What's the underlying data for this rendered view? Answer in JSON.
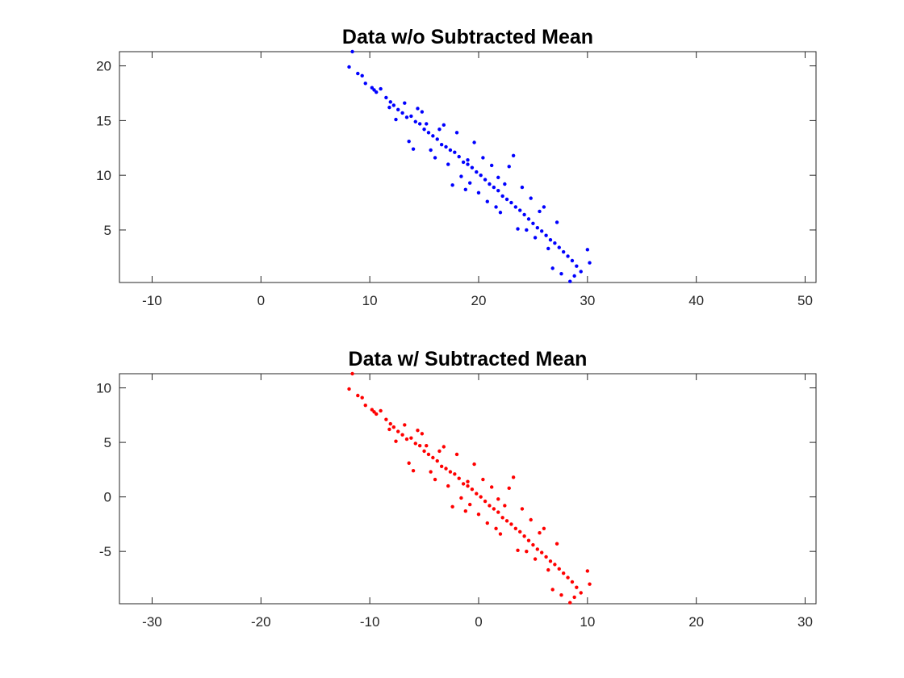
{
  "chart_data": [
    {
      "type": "scatter",
      "title": "Data w/o Subtracted Mean",
      "color": "#0000ff",
      "xlim": [
        -13,
        51
      ],
      "ylim": [
        0.2,
        21.3
      ],
      "xticks": [
        -10,
        0,
        10,
        20,
        30,
        40,
        50
      ],
      "yticks": [
        5,
        10,
        15,
        20
      ],
      "xlabel": "",
      "ylabel": "",
      "grid": false,
      "series": [
        {
          "x": [
            8.4,
            8.1,
            8.9,
            9.3,
            9.6,
            10.2,
            10.6,
            11.0,
            11.5,
            11.9,
            12.2,
            12.6,
            13.0,
            13.4,
            13.8,
            14.2,
            14.6,
            15.0,
            15.4,
            15.8,
            16.2,
            16.6,
            17.0,
            17.4,
            17.8,
            18.2,
            18.6,
            19.0,
            19.4,
            19.8,
            20.2,
            20.6,
            21.0,
            21.4,
            21.8,
            22.2,
            22.6,
            23.0,
            23.4,
            23.8,
            24.2,
            24.6,
            25.0,
            25.4,
            25.8,
            26.2,
            26.6,
            27.0,
            27.4,
            27.8,
            28.2,
            28.6,
            29.0,
            29.4,
            30.0,
            30.2,
            28.8,
            28.4,
            27.6,
            26.8,
            12.4,
            13.2,
            14.4,
            15.6,
            16.8,
            18.0,
            19.2,
            20.4,
            21.6,
            22.8,
            24.0,
            25.2,
            26.4,
            23.6,
            21.2,
            18.8,
            16.4,
            14.0,
            11.8,
            10.4,
            17.2,
            19.6,
            22.0,
            24.4,
            20.8,
            18.4,
            15.2,
            13.6,
            23.2,
            25.6,
            27.2,
            20.0,
            17.6,
            19.0,
            21.8,
            16.0,
            22.4,
            24.8,
            26.0,
            14.8
          ],
          "y": [
            21.3,
            19.9,
            19.3,
            19.1,
            18.4,
            18.0,
            17.6,
            17.9,
            17.1,
            16.7,
            16.4,
            16.0,
            15.7,
            15.3,
            15.4,
            14.9,
            14.7,
            14.2,
            13.9,
            13.6,
            13.3,
            12.8,
            12.6,
            12.3,
            12.1,
            11.7,
            11.2,
            11.0,
            10.7,
            10.3,
            10.0,
            9.6,
            9.2,
            8.9,
            8.6,
            8.1,
            7.8,
            7.5,
            7.1,
            6.8,
            6.4,
            6.0,
            5.6,
            5.2,
            4.9,
            4.5,
            4.1,
            3.8,
            3.4,
            3.0,
            2.6,
            2.2,
            1.7,
            1.2,
            3.2,
            2.0,
            0.8,
            0.3,
            1.0,
            1.5,
            15.1,
            16.6,
            16.1,
            12.3,
            14.6,
            13.9,
            9.3,
            11.6,
            7.1,
            10.8,
            8.9,
            4.3,
            3.3,
            5.1,
            10.9,
            8.7,
            14.2,
            12.4,
            16.2,
            17.8,
            11.0,
            13.0,
            6.6,
            5.0,
            7.6,
            9.9,
            14.7,
            13.1,
            11.8,
            6.7,
            5.7,
            8.4,
            9.1,
            11.4,
            9.8,
            11.6,
            9.2,
            7.9,
            7.1,
            15.8
          ]
        }
      ]
    },
    {
      "type": "scatter",
      "title": "Data w/ Subtracted Mean",
      "color": "#ff0000",
      "xlim": [
        -33,
        31
      ],
      "ylim": [
        -9.8,
        11.3
      ],
      "xticks": [
        -30,
        -20,
        -10,
        0,
        10,
        20,
        30
      ],
      "yticks": [
        -5,
        0,
        5,
        10
      ],
      "xlabel": "",
      "ylabel": "",
      "grid": false,
      "series": [
        {
          "x": [
            -11.6,
            -11.9,
            -11.1,
            -10.7,
            -10.4,
            -9.8,
            -9.4,
            -9.0,
            -8.5,
            -8.1,
            -7.8,
            -7.4,
            -7.0,
            -6.6,
            -6.2,
            -5.8,
            -5.4,
            -5.0,
            -4.6,
            -4.2,
            -3.8,
            -3.4,
            -3.0,
            -2.6,
            -2.2,
            -1.8,
            -1.4,
            -1.0,
            -0.6,
            -0.2,
            0.2,
            0.6,
            1.0,
            1.4,
            1.8,
            2.2,
            2.6,
            3.0,
            3.4,
            3.8,
            4.2,
            4.6,
            5.0,
            5.4,
            5.8,
            6.2,
            6.6,
            7.0,
            7.4,
            7.8,
            8.2,
            8.6,
            9.0,
            9.4,
            10.0,
            10.2,
            8.8,
            8.4,
            7.6,
            6.8,
            -7.6,
            -6.8,
            -5.6,
            -4.4,
            -3.2,
            -2.0,
            -0.8,
            0.4,
            1.6,
            2.8,
            4.0,
            5.2,
            6.4,
            3.6,
            1.2,
            -1.2,
            -3.6,
            -6.0,
            -8.2,
            -9.6,
            -2.8,
            -0.4,
            2.0,
            4.4,
            0.8,
            -1.6,
            -4.8,
            -6.4,
            3.2,
            5.6,
            7.2,
            0.0,
            -2.4,
            -1.0,
            1.8,
            -4.0,
            2.4,
            4.8,
            6.0,
            -5.2
          ],
          "y": [
            11.3,
            9.9,
            9.3,
            9.1,
            8.4,
            8.0,
            7.6,
            7.9,
            7.1,
            6.7,
            6.4,
            6.0,
            5.7,
            5.3,
            5.4,
            4.9,
            4.7,
            4.2,
            3.9,
            3.6,
            3.3,
            2.8,
            2.6,
            2.3,
            2.1,
            1.7,
            1.2,
            1.0,
            0.7,
            0.3,
            0.0,
            -0.4,
            -0.8,
            -1.1,
            -1.4,
            -1.9,
            -2.2,
            -2.5,
            -2.9,
            -3.2,
            -3.6,
            -4.0,
            -4.4,
            -4.8,
            -5.1,
            -5.5,
            -5.9,
            -6.2,
            -6.6,
            -7.0,
            -7.4,
            -7.8,
            -8.3,
            -8.8,
            -6.8,
            -8.0,
            -9.2,
            -9.7,
            -9.0,
            -8.5,
            5.1,
            6.6,
            6.1,
            2.3,
            4.6,
            3.9,
            -0.7,
            1.6,
            -2.9,
            0.8,
            -1.1,
            -5.7,
            -6.7,
            -4.9,
            0.9,
            -1.3,
            4.2,
            2.4,
            6.2,
            7.8,
            1.0,
            3.0,
            -3.4,
            -5.0,
            -2.4,
            -0.1,
            4.7,
            3.1,
            1.8,
            -3.3,
            -4.3,
            -1.6,
            -0.9,
            1.4,
            -0.2,
            1.6,
            -0.8,
            -2.1,
            -2.9,
            5.8
          ]
        }
      ]
    }
  ]
}
